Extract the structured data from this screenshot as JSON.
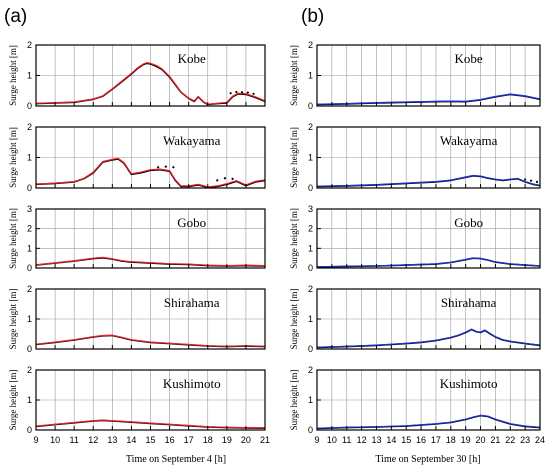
{
  "panels": [
    {
      "letter": "(a)",
      "xlabel": "Time on September 4 [h]"
    },
    {
      "letter": "(b)",
      "xlabel": "Time on September 30 [h]"
    }
  ],
  "ylabel": "Surge height [m]",
  "colors": {
    "observed": "#000000",
    "sim_a": "#e8202a",
    "sim_b": "#1f2fd6",
    "grid": "#9a9a9a"
  },
  "chart_data": [
    {
      "type": "line",
      "panel": "(a)",
      "station": "Kobe",
      "xlim": [
        9,
        21
      ],
      "ylim": [
        0,
        2
      ],
      "yticks": [
        0,
        1,
        2
      ],
      "xticks": [
        9,
        10,
        11,
        12,
        13,
        14,
        15,
        16,
        17,
        18,
        19,
        20,
        21
      ],
      "series": [
        {
          "x": [
            9,
            10,
            11,
            11.5,
            12,
            12.5,
            13,
            13.5,
            14,
            14.3,
            14.6,
            14.8,
            15,
            15.3,
            15.6,
            16,
            16.3,
            16.6,
            17,
            17.3,
            17.5,
            17.8,
            18,
            18.5,
            19,
            19.3,
            19.6,
            20,
            20.5,
            21
          ],
          "y": [
            0.08,
            0.1,
            0.12,
            0.17,
            0.22,
            0.32,
            0.55,
            0.8,
            1.05,
            1.22,
            1.35,
            1.4,
            1.38,
            1.3,
            1.2,
            0.95,
            0.7,
            0.45,
            0.25,
            0.15,
            0.3,
            0.12,
            0.05,
            0.08,
            0.1,
            0.3,
            0.4,
            0.38,
            0.28,
            0.15
          ]
        },
        {
          "x": [
            9,
            10,
            11,
            11.5,
            12,
            12.5,
            13,
            13.5,
            14,
            14.3,
            14.6,
            14.8,
            15,
            15.3,
            15.6,
            16,
            16.3,
            16.6,
            17,
            17.3,
            17.5,
            17.8,
            18,
            18.5,
            19,
            19.3,
            19.6,
            20,
            20.5,
            21
          ],
          "y": [
            0.09,
            0.11,
            0.13,
            0.18,
            0.23,
            0.33,
            0.56,
            0.82,
            1.07,
            1.24,
            1.37,
            1.42,
            1.4,
            1.33,
            1.22,
            0.97,
            0.72,
            0.46,
            0.26,
            0.17,
            0.31,
            0.13,
            0.06,
            0.09,
            0.12,
            0.32,
            0.42,
            0.4,
            0.3,
            0.17
          ]
        }
      ],
      "obs_points": {
        "x": [
          19.2,
          19.5,
          19.8,
          20.1,
          20.4
        ],
        "y": [
          0.42,
          0.46,
          0.45,
          0.44,
          0.4
        ]
      }
    },
    {
      "type": "line",
      "panel": "(a)",
      "station": "Wakayama",
      "xlim": [
        9,
        21
      ],
      "ylim": [
        0,
        2
      ],
      "yticks": [
        0,
        1,
        2
      ],
      "xticks": [
        9,
        10,
        11,
        12,
        13,
        14,
        15,
        16,
        17,
        18,
        19,
        20,
        21
      ],
      "series": [
        {
          "x": [
            9,
            10,
            11,
            11.5,
            12,
            12.5,
            13,
            13.3,
            13.6,
            14,
            14.5,
            15,
            15.5,
            16,
            16.3,
            16.6,
            17,
            17.5,
            18,
            18.5,
            19,
            19.5,
            20,
            20.5,
            21
          ],
          "y": [
            0.12,
            0.15,
            0.2,
            0.3,
            0.5,
            0.85,
            0.92,
            0.95,
            0.82,
            0.45,
            0.5,
            0.58,
            0.6,
            0.55,
            0.25,
            0.05,
            0.05,
            0.1,
            0.02,
            0.05,
            0.12,
            0.22,
            0.08,
            0.2,
            0.25
          ]
        },
        {
          "x": [
            9,
            10,
            11,
            11.5,
            12,
            12.5,
            13,
            13.3,
            13.6,
            14,
            14.5,
            15,
            15.5,
            16,
            16.3,
            16.6,
            17,
            17.5,
            18,
            18.5,
            19,
            19.5,
            20,
            20.5,
            21
          ],
          "y": [
            0.13,
            0.16,
            0.21,
            0.31,
            0.52,
            0.87,
            0.94,
            0.97,
            0.84,
            0.47,
            0.52,
            0.6,
            0.62,
            0.57,
            0.27,
            0.07,
            0.07,
            0.12,
            0.04,
            0.07,
            0.14,
            0.24,
            0.1,
            0.22,
            0.27
          ]
        }
      ],
      "obs_points": {
        "x": [
          15.4,
          15.8,
          16.2,
          18.5,
          18.9,
          19.3
        ],
        "y": [
          0.68,
          0.7,
          0.68,
          0.25,
          0.32,
          0.3
        ]
      }
    },
    {
      "type": "line",
      "panel": "(a)",
      "station": "Gobo",
      "xlim": [
        9,
        21
      ],
      "ylim": [
        0,
        3
      ],
      "yticks": [
        0,
        1,
        2,
        3
      ],
      "xticks": [
        9,
        10,
        11,
        12,
        13,
        14,
        15,
        16,
        17,
        18,
        19,
        20,
        21
      ],
      "series": [
        {
          "x": [
            9,
            10,
            11,
            12,
            12.5,
            13,
            13.5,
            14,
            15,
            16,
            17,
            18,
            19,
            20,
            21
          ],
          "y": [
            0.15,
            0.25,
            0.35,
            0.48,
            0.52,
            0.45,
            0.35,
            0.3,
            0.25,
            0.2,
            0.18,
            0.12,
            0.1,
            0.12,
            0.1
          ]
        },
        {
          "x": [
            9,
            10,
            11,
            12,
            12.5,
            13,
            13.5,
            14,
            15,
            16,
            17,
            18,
            19,
            20,
            21
          ],
          "y": [
            0.16,
            0.26,
            0.36,
            0.5,
            0.54,
            0.47,
            0.37,
            0.32,
            0.27,
            0.22,
            0.2,
            0.14,
            0.12,
            0.14,
            0.12
          ]
        }
      ]
    },
    {
      "type": "line",
      "panel": "(a)",
      "station": "Shirahama",
      "xlim": [
        9,
        21
      ],
      "ylim": [
        0,
        2
      ],
      "yticks": [
        0,
        1,
        2
      ],
      "xticks": [
        9,
        10,
        11,
        12,
        13,
        14,
        15,
        16,
        17,
        18,
        19,
        20,
        21
      ],
      "series": [
        {
          "x": [
            9,
            10,
            11,
            12,
            12.5,
            13,
            13.5,
            14,
            15,
            16,
            17,
            18,
            19,
            20,
            21
          ],
          "y": [
            0.15,
            0.22,
            0.3,
            0.4,
            0.44,
            0.45,
            0.38,
            0.3,
            0.22,
            0.18,
            0.14,
            0.1,
            0.08,
            0.1,
            0.08
          ]
        },
        {
          "x": [
            9,
            10,
            11,
            12,
            12.5,
            13,
            13.5,
            14,
            15,
            16,
            17,
            18,
            19,
            20,
            21
          ],
          "y": [
            0.16,
            0.23,
            0.31,
            0.41,
            0.45,
            0.46,
            0.39,
            0.31,
            0.23,
            0.19,
            0.15,
            0.11,
            0.09,
            0.11,
            0.09
          ]
        }
      ]
    },
    {
      "type": "line",
      "panel": "(a)",
      "station": "Kushimoto",
      "xlim": [
        9,
        21
      ],
      "ylim": [
        0,
        2
      ],
      "yticks": [
        0,
        1,
        2
      ],
      "xticks": [
        9,
        10,
        11,
        12,
        13,
        14,
        15,
        16,
        17,
        18,
        19,
        20,
        21
      ],
      "series": [
        {
          "x": [
            9,
            10,
            11,
            12,
            12.5,
            13,
            14,
            15,
            16,
            17,
            18,
            19,
            20,
            21
          ],
          "y": [
            0.12,
            0.18,
            0.24,
            0.3,
            0.32,
            0.3,
            0.26,
            0.22,
            0.18,
            0.14,
            0.1,
            0.08,
            0.07,
            0.06
          ]
        },
        {
          "x": [
            9,
            10,
            11,
            12,
            12.5,
            13,
            14,
            15,
            16,
            17,
            18,
            19,
            20,
            21
          ],
          "y": [
            0.13,
            0.19,
            0.25,
            0.31,
            0.33,
            0.31,
            0.27,
            0.23,
            0.19,
            0.15,
            0.11,
            0.09,
            0.08,
            0.07
          ]
        }
      ]
    },
    {
      "type": "line",
      "panel": "(b)",
      "station": "Kobe",
      "xlim": [
        9,
        24
      ],
      "ylim": [
        0,
        2
      ],
      "yticks": [
        0,
        1,
        2
      ],
      "xticks": [
        9,
        10,
        11,
        12,
        13,
        14,
        15,
        16,
        17,
        18,
        19,
        20,
        21,
        22,
        23,
        24
      ],
      "series": [
        {
          "x": [
            9,
            11,
            13,
            15,
            17,
            18,
            19,
            20,
            21,
            22,
            23,
            24
          ],
          "y": [
            0.05,
            0.07,
            0.1,
            0.12,
            0.14,
            0.15,
            0.14,
            0.2,
            0.3,
            0.38,
            0.32,
            0.22
          ]
        },
        {
          "x": [
            9,
            11,
            13,
            15,
            17,
            18,
            19,
            20,
            21,
            22,
            23,
            24
          ],
          "y": [
            0.06,
            0.08,
            0.11,
            0.13,
            0.15,
            0.16,
            0.15,
            0.21,
            0.31,
            0.39,
            0.33,
            0.23
          ]
        }
      ]
    },
    {
      "type": "line",
      "panel": "(b)",
      "station": "Wakayama",
      "xlim": [
        9,
        24
      ],
      "ylim": [
        0,
        2
      ],
      "yticks": [
        0,
        1,
        2
      ],
      "xticks": [
        9,
        10,
        11,
        12,
        13,
        14,
        15,
        16,
        17,
        18,
        19,
        20,
        21,
        22,
        23,
        24
      ],
      "series": [
        {
          "x": [
            9,
            11,
            13,
            15,
            17,
            18,
            19,
            19.5,
            20,
            20.5,
            21,
            21.5,
            22,
            22.5,
            23,
            23.5,
            24
          ],
          "y": [
            0.05,
            0.07,
            0.1,
            0.15,
            0.2,
            0.25,
            0.35,
            0.4,
            0.38,
            0.32,
            0.28,
            0.25,
            0.28,
            0.3,
            0.2,
            0.12,
            0.08
          ]
        },
        {
          "x": [
            9,
            11,
            13,
            15,
            17,
            18,
            19,
            19.5,
            20,
            20.5,
            21,
            21.5,
            22,
            22.5,
            23,
            23.5,
            24
          ],
          "y": [
            0.06,
            0.08,
            0.11,
            0.16,
            0.21,
            0.26,
            0.36,
            0.41,
            0.39,
            0.33,
            0.29,
            0.26,
            0.29,
            0.31,
            0.21,
            0.13,
            0.09
          ]
        }
      ],
      "obs_points": {
        "x": [
          23,
          23.4,
          23.8
        ],
        "y": [
          0.28,
          0.24,
          0.2
        ]
      }
    },
    {
      "type": "line",
      "panel": "(b)",
      "station": "Gobo",
      "xlim": [
        9,
        24
      ],
      "ylim": [
        0,
        3
      ],
      "yticks": [
        0,
        1,
        2,
        3
      ],
      "xticks": [
        9,
        10,
        11,
        12,
        13,
        14,
        15,
        16,
        17,
        18,
        19,
        20,
        21,
        22,
        23,
        24
      ],
      "series": [
        {
          "x": [
            9,
            11,
            13,
            15,
            17,
            18,
            19,
            19.5,
            20,
            20.5,
            21,
            22,
            23,
            24
          ],
          "y": [
            0.05,
            0.08,
            0.1,
            0.15,
            0.2,
            0.28,
            0.42,
            0.5,
            0.48,
            0.4,
            0.3,
            0.2,
            0.15,
            0.1
          ]
        },
        {
          "x": [
            9,
            11,
            13,
            15,
            17,
            18,
            19,
            19.5,
            20,
            20.5,
            21,
            22,
            23,
            24
          ],
          "y": [
            0.06,
            0.09,
            0.11,
            0.16,
            0.21,
            0.29,
            0.43,
            0.51,
            0.49,
            0.41,
            0.31,
            0.21,
            0.16,
            0.11
          ]
        }
      ]
    },
    {
      "type": "line",
      "panel": "(b)",
      "station": "Shirahama",
      "xlim": [
        9,
        24
      ],
      "ylim": [
        0,
        2
      ],
      "yticks": [
        0,
        1,
        2
      ],
      "xticks": [
        9,
        10,
        11,
        12,
        13,
        14,
        15,
        16,
        17,
        18,
        19,
        20,
        21,
        22,
        23,
        24
      ],
      "series": [
        {
          "x": [
            9,
            11,
            13,
            15,
            16,
            17,
            18,
            18.5,
            19,
            19.4,
            19.7,
            20,
            20.3,
            20.6,
            21,
            21.5,
            22,
            23,
            24
          ],
          "y": [
            0.05,
            0.08,
            0.12,
            0.18,
            0.22,
            0.28,
            0.38,
            0.45,
            0.55,
            0.65,
            0.58,
            0.55,
            0.62,
            0.52,
            0.4,
            0.3,
            0.25,
            0.18,
            0.12
          ]
        },
        {
          "x": [
            9,
            11,
            13,
            15,
            16,
            17,
            18,
            18.5,
            19,
            19.4,
            19.7,
            20,
            20.3,
            20.6,
            21,
            21.5,
            22,
            23,
            24
          ],
          "y": [
            0.06,
            0.09,
            0.13,
            0.19,
            0.23,
            0.29,
            0.39,
            0.46,
            0.56,
            0.66,
            0.59,
            0.56,
            0.63,
            0.53,
            0.41,
            0.31,
            0.26,
            0.19,
            0.13
          ]
        }
      ]
    },
    {
      "type": "line",
      "panel": "(b)",
      "station": "Kushimoto",
      "xlim": [
        9,
        24
      ],
      "ylim": [
        0,
        2
      ],
      "yticks": [
        0,
        1,
        2
      ],
      "xticks": [
        9,
        10,
        11,
        12,
        13,
        14,
        15,
        16,
        17,
        18,
        19,
        20,
        21,
        22,
        23,
        24
      ],
      "series": [
        {
          "x": [
            9,
            11,
            13,
            15,
            17,
            18,
            19,
            19.5,
            20,
            20.5,
            21,
            22,
            23,
            24
          ],
          "y": [
            0.05,
            0.08,
            0.1,
            0.13,
            0.2,
            0.25,
            0.35,
            0.42,
            0.48,
            0.45,
            0.35,
            0.2,
            0.12,
            0.08
          ]
        },
        {
          "x": [
            9,
            11,
            13,
            15,
            17,
            18,
            19,
            19.5,
            20,
            20.5,
            21,
            22,
            23,
            24
          ],
          "y": [
            0.06,
            0.09,
            0.11,
            0.14,
            0.21,
            0.26,
            0.36,
            0.43,
            0.49,
            0.46,
            0.36,
            0.21,
            0.13,
            0.09
          ]
        }
      ]
    }
  ]
}
